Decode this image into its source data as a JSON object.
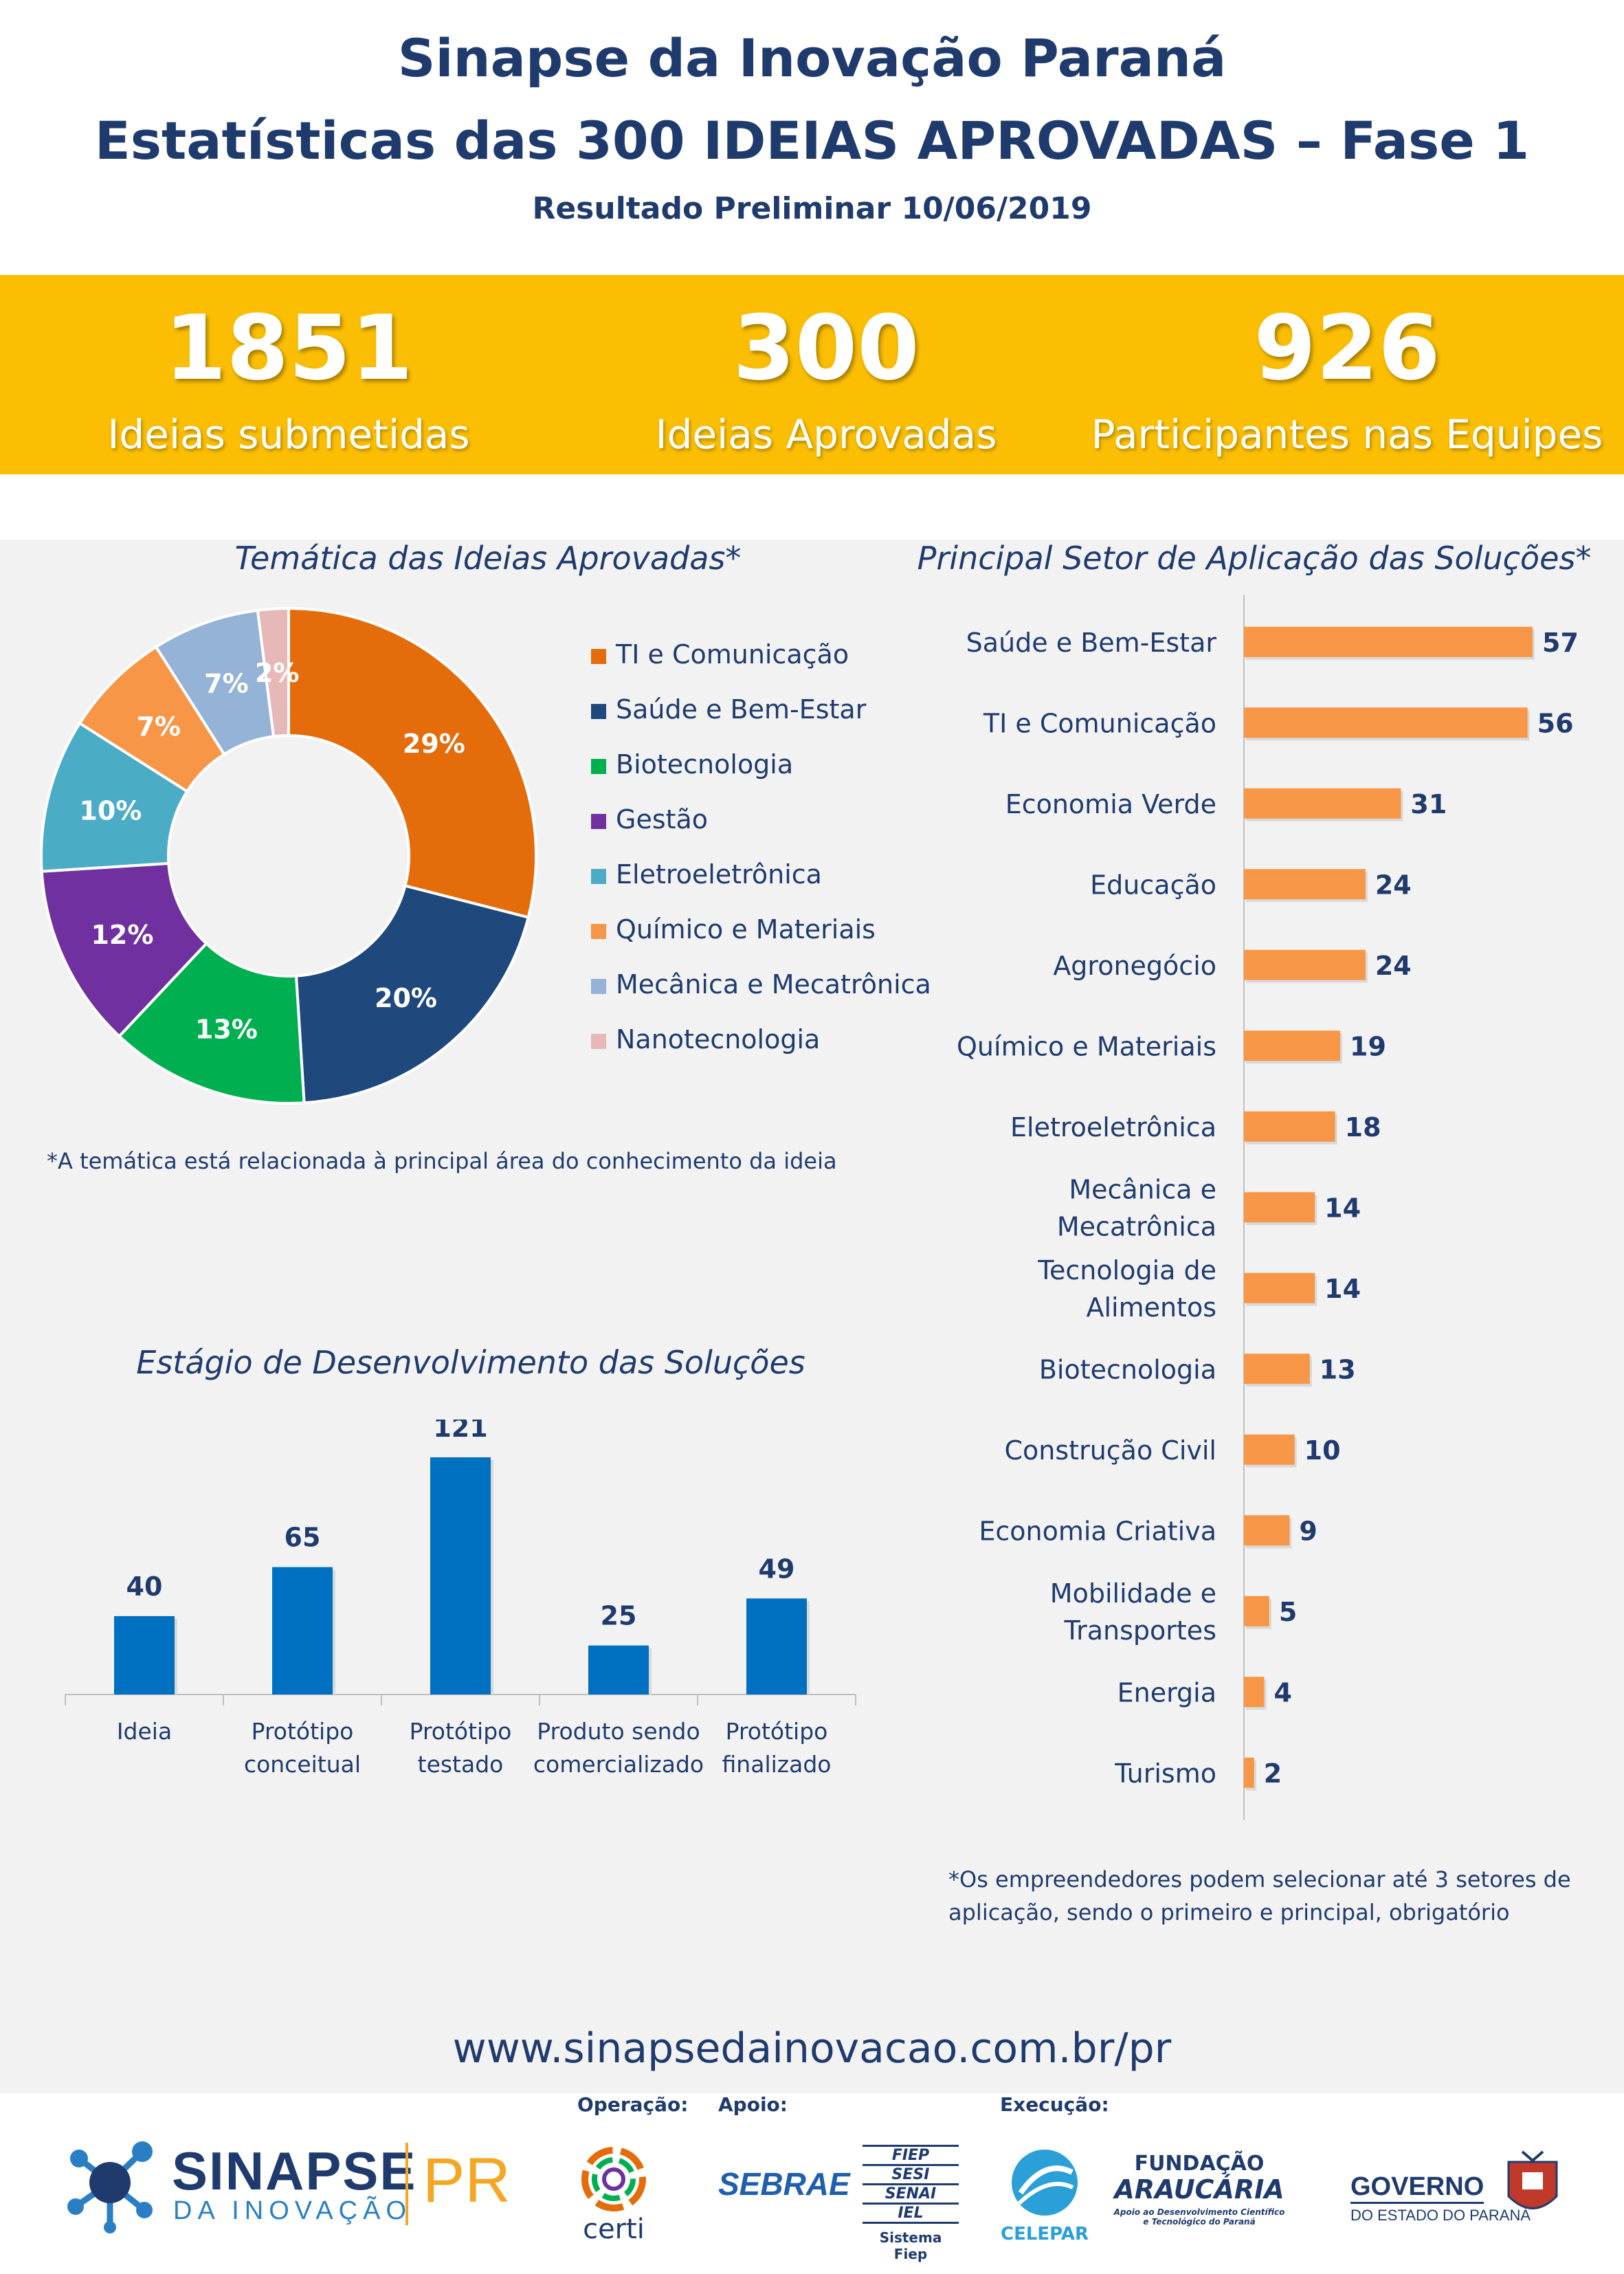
{
  "header": {
    "title_line1": "Sinapse da Inovação Paraná",
    "title_line2": "Estatísticas das 300 IDEIAS APROVADAS – Fase 1",
    "subtitle": "Resultado Preliminar 10/06/2019"
  },
  "stats": [
    {
      "value": "1851",
      "label": "Ideias submetidas"
    },
    {
      "value": "300",
      "label": "Ideias Aprovadas"
    },
    {
      "value": "926",
      "label": "Participantes nas Equipes"
    }
  ],
  "colors": {
    "navy": "#1f3b6e",
    "yellow_band": "#fbbe02",
    "bar_blue": "#0070c0",
    "bar_orange": "#f79646",
    "background_gray": "#f2f2f2"
  },
  "tematica": {
    "title": "Temática das Ideias Aprovadas*",
    "note": "*A temática está relacionada à principal área do conhecimento da ideia"
  },
  "setor": {
    "title": "Principal Setor de Aplicação das Soluções*",
    "note_line1": "*Os empreendedores podem selecionar até 3 setores de",
    "note_line2": "aplicação, sendo o primeiro e principal, obrigatório"
  },
  "estagio": {
    "title": "Estágio de Desenvolvimento das Soluções"
  },
  "chart_data": [
    {
      "type": "pie",
      "variant": "donut",
      "title": "Temática das Ideias Aprovadas*",
      "legend_position": "right",
      "categories": [
        "TI e Comunicação",
        "Saúde e Bem-Estar",
        "Biotecnologia",
        "Gestão",
        "Eletroeletrônica",
        "Químico e Materiais",
        "Mecânica e Mecatrônica",
        "Nanotecnologia"
      ],
      "values": [
        29,
        20,
        13,
        12,
        10,
        7,
        7,
        2
      ],
      "labels": [
        "29%",
        "20%",
        "13%",
        "12%",
        "10%",
        "7%",
        "7%",
        "2%"
      ],
      "colors": [
        "#e46c0a",
        "#1f497d",
        "#00b050",
        "#7030a0",
        "#4bacc6",
        "#f79646",
        "#95b3d7",
        "#e6b9b8"
      ]
    },
    {
      "type": "bar",
      "orientation": "horizontal",
      "title": "Principal Setor de Aplicação das Soluções*",
      "categories": [
        "Saúde e Bem-Estar",
        "TI e Comunicação",
        "Economia Verde",
        "Educação",
        "Agronegócio",
        "Químico e Materiais",
        "Eletroeletrônica",
        "Mecânica e\nMecatrônica",
        "Tecnologia de\nAlimentos",
        "Biotecnologia",
        "Construção Civil",
        "Economia Criativa",
        "Mobilidade e\nTransportes",
        "Energia",
        "Turismo"
      ],
      "values": [
        57,
        56,
        31,
        24,
        24,
        19,
        18,
        14,
        14,
        13,
        10,
        9,
        5,
        4,
        2
      ],
      "color": "#f79646",
      "grid": false
    },
    {
      "type": "bar",
      "orientation": "vertical",
      "title": "Estágio de Desenvolvimento das Soluções",
      "categories": [
        "Ideia",
        "Protótipo\nconceitual",
        "Protótipo\ntestado",
        "Produto sendo\ncomercializado",
        "Protótipo\nfinalizado"
      ],
      "values": [
        40,
        65,
        121,
        25,
        49
      ],
      "color": "#0070c0",
      "grid": false
    }
  ],
  "url": "www.sinapsedainovacao.com.br/pr",
  "footer": {
    "operacao_label": "Operação:",
    "apoio_label": "Apoio:",
    "execucao_label": "Execução:",
    "logos": {
      "sinapse": {
        "word": "SINAPSE",
        "sub": "DA INOVAÇÃO",
        "pr": "PR"
      },
      "certi": "certi",
      "sebrae": "SEBRAE",
      "fiep": {
        "lines": [
          "FIEP",
          "SESI",
          "SENAI",
          "IEL"
        ],
        "caption": "Sistema Fiep"
      },
      "celepar": "CELEPAR",
      "araucaria": {
        "line1": "FUNDAÇÃO",
        "line2": "ARAUCÁRIA",
        "caption1": "Apoio ao Desenvolvimento Científico",
        "caption2": "e Tecnológico do Paraná"
      },
      "governo": {
        "line1": "GOVERNO",
        "line2": "DO ESTADO DO PARANÁ"
      }
    }
  }
}
